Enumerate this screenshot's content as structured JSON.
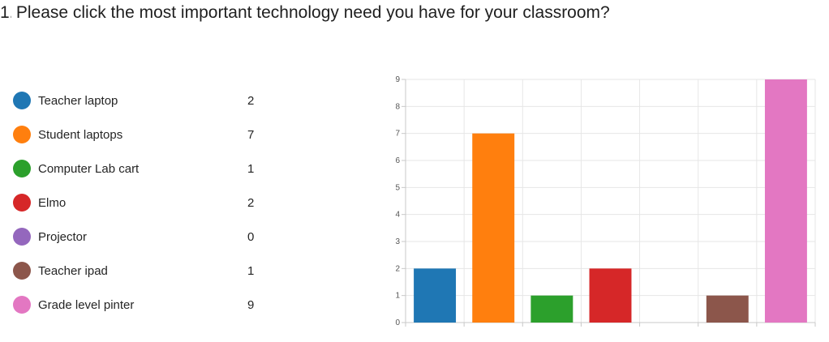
{
  "question": {
    "number": "1.",
    "text": "Please click the most important technology need you have for your classroom?"
  },
  "legend": [
    {
      "label": "Teacher laptop",
      "count": "2",
      "color": "#1f77b4"
    },
    {
      "label": "Student laptops",
      "count": "7",
      "color": "#ff7f0e"
    },
    {
      "label": "Computer Lab cart",
      "count": "1",
      "color": "#2ca02c"
    },
    {
      "label": "Elmo",
      "count": "2",
      "color": "#d62728"
    },
    {
      "label": "Projector",
      "count": "0",
      "color": "#9467bd"
    },
    {
      "label": "Teacher ipad",
      "count": "1",
      "color": "#8c564b"
    },
    {
      "label": "Grade level pinter",
      "count": "9",
      "color": "#e377c2"
    }
  ],
  "chart_data": {
    "type": "bar",
    "categories": [
      "Teacher laptop",
      "Student laptops",
      "Computer Lab cart",
      "Elmo",
      "Projector",
      "Teacher ipad",
      "Grade level pinter"
    ],
    "values": [
      2,
      7,
      1,
      2,
      0,
      1,
      9
    ],
    "colors": [
      "#1f77b4",
      "#ff7f0e",
      "#2ca02c",
      "#d62728",
      "#9467bd",
      "#8c564b",
      "#e377c2"
    ],
    "ylim": [
      0,
      9
    ],
    "yticks": [
      "0",
      "1",
      "2",
      "3",
      "4",
      "5",
      "6",
      "7",
      "8",
      "9"
    ],
    "title": "",
    "xlabel": "",
    "ylabel": "",
    "grid": true,
    "legend_placement": "left"
  }
}
